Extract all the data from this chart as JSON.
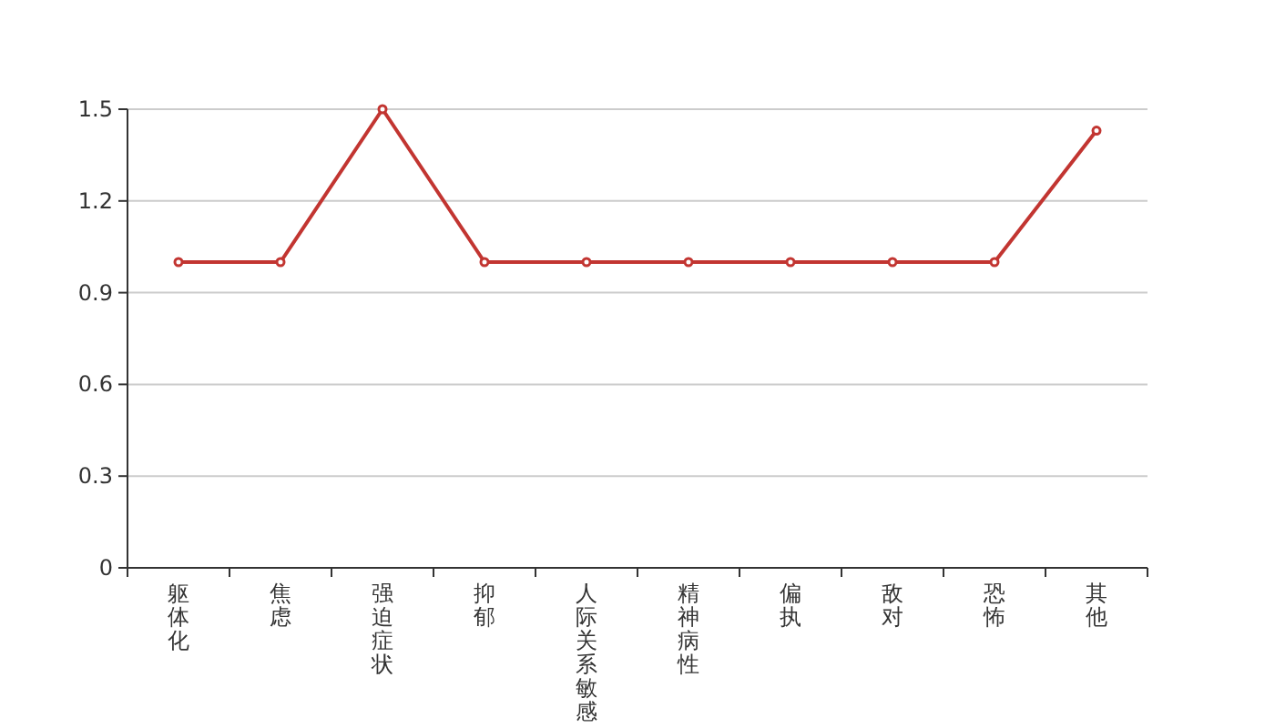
{
  "chart_data": {
    "type": "line",
    "categories": [
      "躯体化",
      "焦虑",
      "强迫症状",
      "抑郁",
      "人际关系敏感",
      "精神病性",
      "偏执",
      "敌对",
      "恐怖",
      "其他"
    ],
    "series": [
      {
        "color": "#c23531",
        "values": [
          1,
          1,
          1.5,
          1,
          1,
          1,
          1,
          1,
          1,
          1.43
        ]
      }
    ],
    "ylim": [
      0,
      1.5
    ],
    "yticks": [
      0,
      0.3,
      0.6,
      0.9,
      1.2,
      1.5
    ],
    "grid": "y",
    "marker": "circle"
  }
}
